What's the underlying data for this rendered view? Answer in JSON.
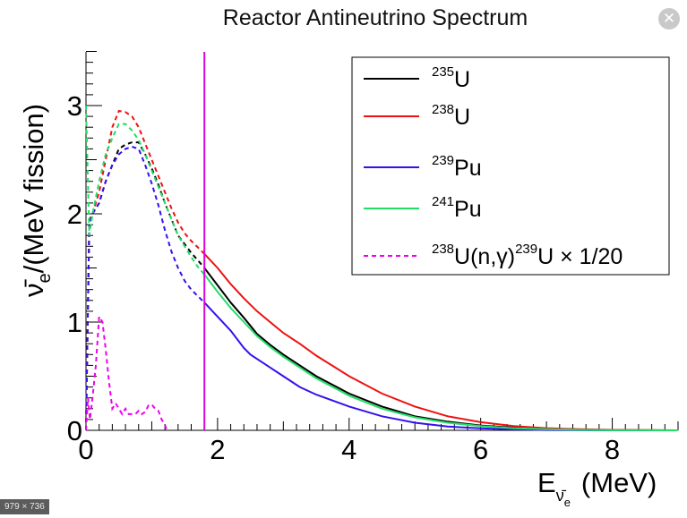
{
  "close_button": {
    "icon": "close-icon",
    "glyph": "✕"
  },
  "image_size_badge": "979 × 736",
  "chart_data": {
    "type": "line",
    "title": "Reactor Antineutrino Spectrum",
    "xlabel": "E_ν̄e (MeV)",
    "xlabel_main": "E",
    "xlabel_sub": "ν̄",
    "xlabel_subsub": "e",
    "xlabel_unit": "(MeV)",
    "ylabel": "ν̄e/(MeV fission)",
    "ylabel_main": "ν̄",
    "ylabel_sub": "e",
    "ylabel_rest": "/(MeV fission)",
    "xlim": [
      0,
      9
    ],
    "ylim": [
      0,
      3.5
    ],
    "xticks": [
      0,
      2,
      4,
      6,
      8
    ],
    "yticks": [
      0,
      1,
      2,
      3
    ],
    "grid": false,
    "legend_placement": "top-right",
    "vertical_line": {
      "x": 1.8,
      "color": "#e000e0"
    },
    "series": [
      {
        "name": "235U",
        "mass": "235",
        "element": "U",
        "color": "#000000",
        "dashed_x": [
          0,
          0.05,
          0.1,
          0.2,
          0.3,
          0.4,
          0.5,
          0.6,
          0.7,
          0.8,
          0.9,
          1.0,
          1.1,
          1.2,
          1.3,
          1.4,
          1.5,
          1.6,
          1.7,
          1.8
        ],
        "dashed_y": [
          0,
          1.9,
          2.0,
          2.1,
          2.3,
          2.45,
          2.6,
          2.64,
          2.66,
          2.66,
          2.55,
          2.42,
          2.27,
          2.1,
          1.95,
          1.8,
          1.72,
          1.64,
          1.57,
          1.5
        ],
        "solid_x": [
          1.8,
          2.0,
          2.2,
          2.4,
          2.6,
          2.8,
          3.0,
          3.25,
          3.5,
          4.0,
          4.5,
          5.0,
          5.5,
          6.0,
          6.5,
          7.0,
          7.5,
          8.0,
          9.0
        ],
        "solid_y": [
          1.5,
          1.34,
          1.18,
          1.04,
          0.89,
          0.79,
          0.7,
          0.6,
          0.5,
          0.34,
          0.22,
          0.13,
          0.08,
          0.045,
          0.025,
          0.012,
          0.006,
          0.002,
          0
        ]
      },
      {
        "name": "238U",
        "mass": "238",
        "element": "U",
        "color": "#ee1111",
        "dashed_x": [
          0,
          0.05,
          0.1,
          0.2,
          0.3,
          0.4,
          0.5,
          0.6,
          0.7,
          0.8,
          0.9,
          1.0,
          1.1,
          1.2,
          1.3,
          1.4,
          1.5,
          1.6,
          1.7,
          1.8
        ],
        "dashed_y": [
          0,
          1.95,
          2.0,
          2.2,
          2.5,
          2.8,
          2.95,
          2.94,
          2.9,
          2.8,
          2.65,
          2.5,
          2.35,
          2.2,
          2.05,
          1.92,
          1.82,
          1.75,
          1.69,
          1.63
        ],
        "solid_x": [
          1.8,
          2.0,
          2.2,
          2.4,
          2.6,
          2.8,
          3.0,
          3.25,
          3.5,
          4.0,
          4.5,
          5.0,
          5.5,
          6.0,
          6.5,
          7.0,
          7.5,
          8.0,
          9.0
        ],
        "solid_y": [
          1.63,
          1.5,
          1.35,
          1.22,
          1.1,
          1.0,
          0.9,
          0.8,
          0.69,
          0.5,
          0.34,
          0.22,
          0.13,
          0.075,
          0.04,
          0.02,
          0.01,
          0.004,
          0
        ]
      },
      {
        "name": "239Pu",
        "mass": "239",
        "element": "Pu",
        "color": "#3311ee",
        "dashed_x": [
          0,
          0.05,
          0.1,
          0.2,
          0.3,
          0.4,
          0.5,
          0.6,
          0.7,
          0.8,
          0.9,
          1.0,
          1.1,
          1.2,
          1.3,
          1.4,
          1.5,
          1.6,
          1.7,
          1.8
        ],
        "dashed_y": [
          0,
          1.9,
          2.0,
          2.1,
          2.3,
          2.45,
          2.55,
          2.6,
          2.62,
          2.6,
          2.45,
          2.28,
          2.08,
          1.85,
          1.65,
          1.5,
          1.38,
          1.3,
          1.24,
          1.18
        ],
        "solid_x": [
          1.8,
          2.0,
          2.2,
          2.4,
          2.5,
          2.75,
          3.0,
          3.25,
          3.5,
          4.0,
          4.5,
          5.0,
          5.5,
          6.0,
          6.5,
          7.0,
          7.5,
          8.0,
          9.0
        ],
        "solid_y": [
          1.18,
          1.05,
          0.92,
          0.76,
          0.7,
          0.6,
          0.5,
          0.4,
          0.33,
          0.22,
          0.13,
          0.07,
          0.035,
          0.018,
          0.008,
          0.003,
          0.001,
          0,
          0
        ]
      },
      {
        "name": "241Pu",
        "mass": "241",
        "element": "Pu",
        "color": "#22dd66",
        "dashed_x": [
          0,
          0.05,
          0.1,
          0.2,
          0.3,
          0.4,
          0.5,
          0.6,
          0.7,
          0.8,
          0.9,
          1.0,
          1.1,
          1.2,
          1.3,
          1.4,
          1.5,
          1.6,
          1.7,
          1.8
        ],
        "dashed_y": [
          3.0,
          1.8,
          2.0,
          2.3,
          2.55,
          2.7,
          2.83,
          2.83,
          2.77,
          2.68,
          2.55,
          2.4,
          2.25,
          2.1,
          1.95,
          1.8,
          1.7,
          1.6,
          1.51,
          1.44
        ],
        "solid_x": [
          1.8,
          2.0,
          2.2,
          2.4,
          2.6,
          2.8,
          3.0,
          3.25,
          3.5,
          4.0,
          4.5,
          5.0,
          5.5,
          6.0,
          6.5,
          7.0,
          7.5,
          8.0,
          9.0
        ],
        "solid_y": [
          1.44,
          1.28,
          1.13,
          1.0,
          0.87,
          0.77,
          0.68,
          0.58,
          0.48,
          0.32,
          0.2,
          0.12,
          0.07,
          0.04,
          0.02,
          0.01,
          0.004,
          0.001,
          0
        ]
      },
      {
        "name": "238U(n,γ)239U × 1/20",
        "mass": "238",
        "element": "U(n,γ)",
        "mass2": "239",
        "element2": "U × 1/20",
        "color": "#ee00ee",
        "style": "dashed",
        "x": [
          0,
          0.03,
          0.06,
          0.1,
          0.15,
          0.2,
          0.25,
          0.3,
          0.35,
          0.4,
          0.45,
          0.5,
          0.55,
          0.6,
          0.65,
          0.7,
          0.75,
          0.8,
          0.85,
          0.9,
          0.95,
          1.0,
          1.05,
          1.1,
          1.15,
          1.2,
          1.23
        ],
        "y": [
          0,
          0.3,
          0.1,
          0.3,
          0.6,
          1.05,
          1.0,
          0.75,
          0.45,
          0.2,
          0.25,
          0.2,
          0.15,
          0.2,
          0.15,
          0.15,
          0.15,
          0.18,
          0.15,
          0.17,
          0.23,
          0.24,
          0.2,
          0.18,
          0.1,
          0.05,
          0
        ]
      }
    ]
  }
}
